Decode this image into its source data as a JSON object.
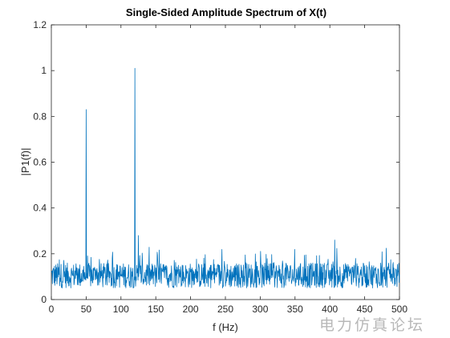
{
  "colors": {
    "series": "#0072bd",
    "axis": "#262626",
    "background": "#ffffff"
  },
  "watermark": "电力仿真论坛",
  "chart_data": {
    "type": "line",
    "title": "Single-Sided Amplitude Spectrum of X(t)",
    "xlabel": "f (Hz)",
    "ylabel": "|P1(f)|",
    "xlim": [
      0,
      500
    ],
    "ylim": [
      0,
      1.2
    ],
    "xticks": [
      0,
      50,
      100,
      150,
      200,
      250,
      300,
      350,
      400,
      450,
      500
    ],
    "yticks": [
      0,
      0.2,
      0.4,
      0.6,
      0.8,
      1,
      1.2
    ],
    "ytick_labels": [
      "0",
      "0.2",
      "0.4",
      "0.6",
      "0.8",
      "1",
      "1.2"
    ],
    "grid": false,
    "series": [
      {
        "x_range": [
          0,
          500
        ],
        "noise_floor_max": 0.27,
        "peaks": [
          {
            "x": 50,
            "y": 0.83
          },
          {
            "x": 120,
            "y": 1.01
          },
          {
            "x": 125,
            "y": 0.28
          },
          {
            "x": 407,
            "y": 0.26
          }
        ]
      }
    ]
  }
}
